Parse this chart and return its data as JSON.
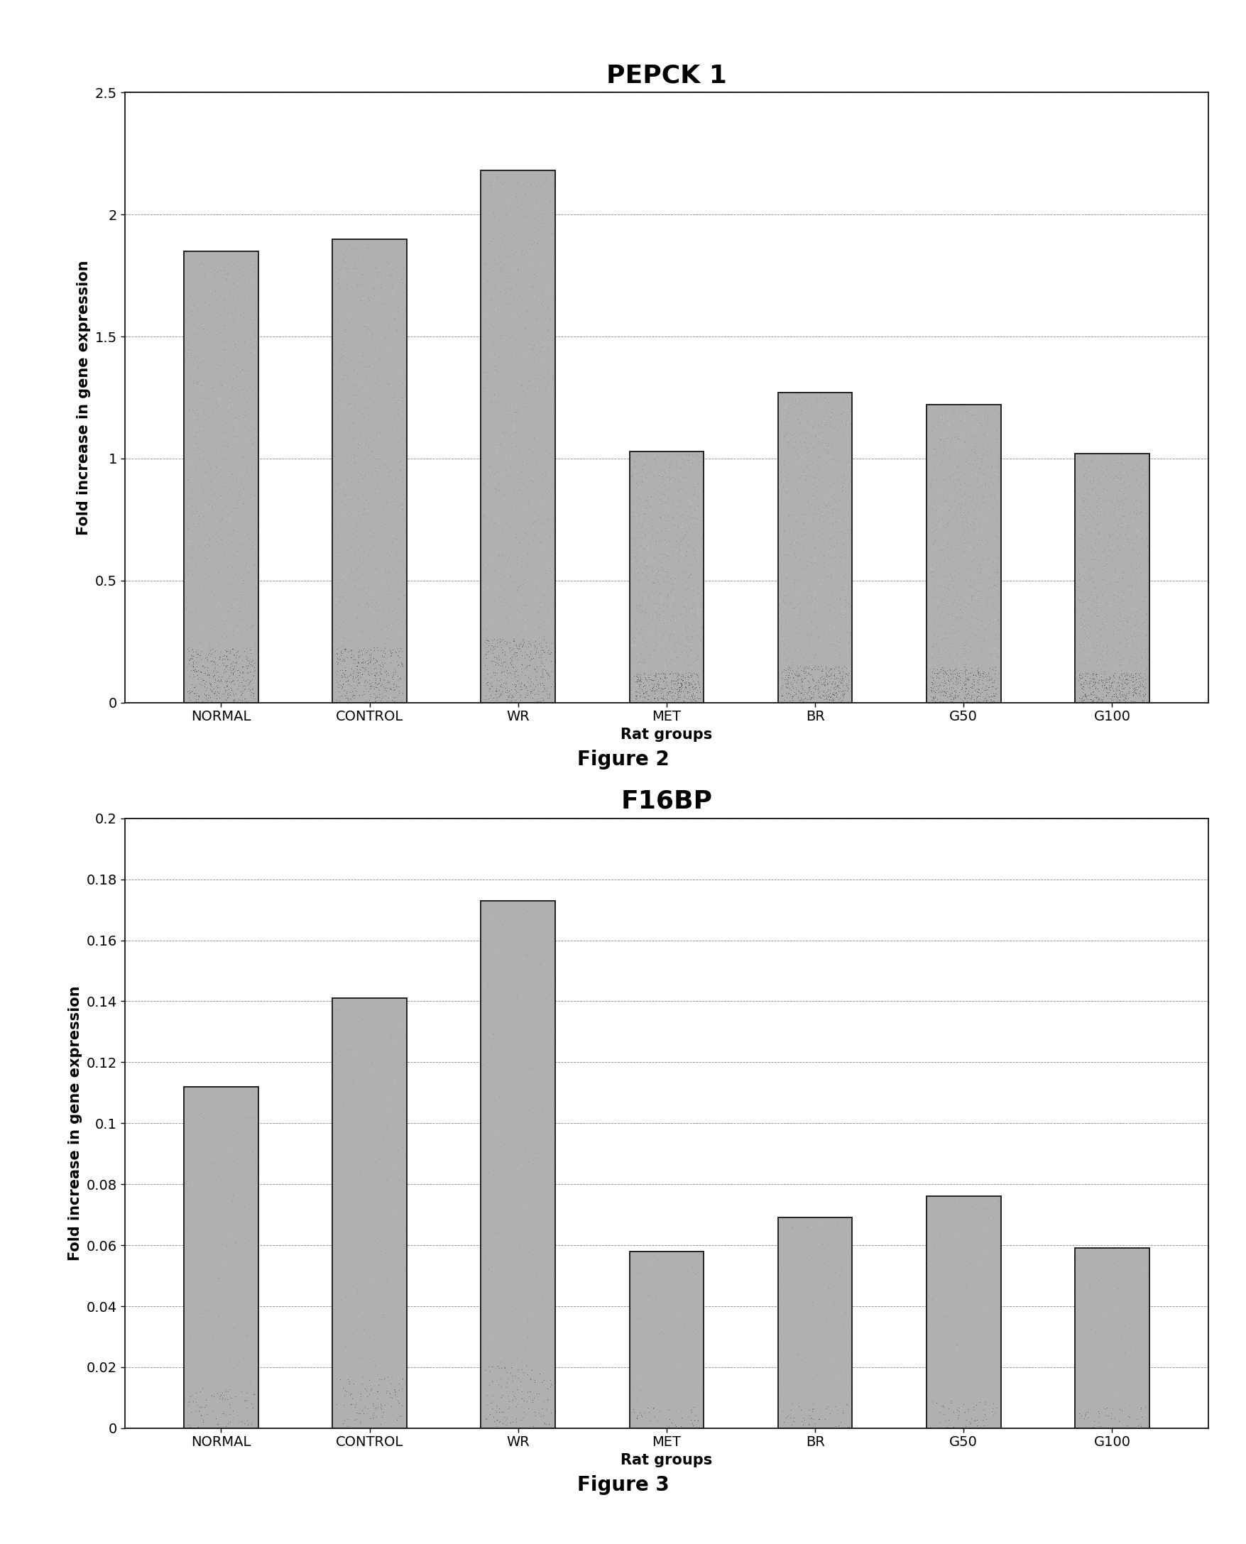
{
  "fig1": {
    "title": "PEPCK 1",
    "categories": [
      "NORMAL",
      "CONTROL",
      "WR",
      "MET",
      "BR",
      "G50",
      "G100"
    ],
    "values": [
      1.85,
      1.9,
      2.18,
      1.03,
      1.27,
      1.22,
      1.02
    ],
    "ylabel": "Fold increase in gene expression",
    "xlabel": "Rat groups",
    "ylim": [
      0,
      2.5
    ],
    "yticks": [
      0,
      0.5,
      1.0,
      1.5,
      2.0,
      2.5
    ],
    "ytick_labels": [
      "0",
      "0.5",
      "1",
      "1.5",
      "2",
      "2.5"
    ],
    "figure_label": "Figure 2"
  },
  "fig2": {
    "title": "F16BP",
    "categories": [
      "NORMAL",
      "CONTROL",
      "WR",
      "MET",
      "BR",
      "G50",
      "G100"
    ],
    "values": [
      0.112,
      0.141,
      0.173,
      0.058,
      0.069,
      0.076,
      0.059
    ],
    "ylabel": "Fold increase in gene expression",
    "xlabel": "Rat groups",
    "ylim": [
      0,
      0.2
    ],
    "yticks": [
      0,
      0.02,
      0.04,
      0.06,
      0.08,
      0.1,
      0.12,
      0.14,
      0.16,
      0.18,
      0.2
    ],
    "ytick_labels": [
      "0",
      "0.02",
      "0.04",
      "0.06",
      "0.08",
      "0.1",
      "0.12",
      "0.14",
      "0.16",
      "0.18",
      "0.2"
    ],
    "figure_label": "Figure 3"
  },
  "background_color": "#ffffff",
  "plot_bg_color": "#ffffff",
  "title_fontsize": 26,
  "axis_label_fontsize": 15,
  "tick_fontsize": 14,
  "figure_label_fontsize": 20,
  "bar_width": 0.5,
  "bar_edge_color": "#222222",
  "grid_color": "#888888",
  "grid_linestyle": "--",
  "grid_linewidth": 0.6
}
